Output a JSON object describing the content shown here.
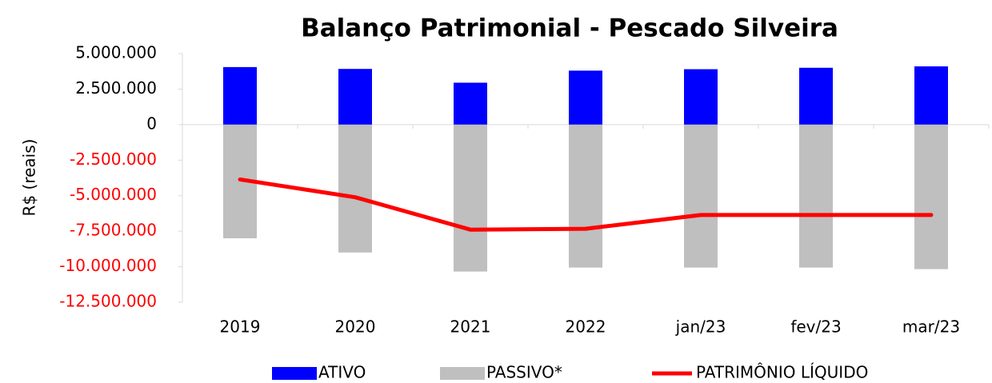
{
  "chart_data": {
    "type": "bar",
    "title": "Balanço Patrimonial - Pescado Silveira",
    "y_label": "R$ (reais)",
    "categories": [
      "2019",
      "2020",
      "2021",
      "2022",
      "jan/23",
      "fev/23",
      "mar/23"
    ],
    "series": [
      {
        "name": "ATIVO",
        "type": "bar",
        "color": "#0000ff",
        "values": [
          4050000,
          3920000,
          2950000,
          3800000,
          3900000,
          4000000,
          4100000
        ]
      },
      {
        "name": "PASSIVO*",
        "type": "bar",
        "color": "#bfbfbf",
        "values": [
          -8000000,
          -9000000,
          -10340000,
          -10060000,
          -10060000,
          -10060000,
          -10170000
        ]
      },
      {
        "name": "PATRIMÔNIO LÍQUIDO",
        "type": "line",
        "color": "#ff0000",
        "values": [
          -3860000,
          -5110000,
          -7390000,
          -7330000,
          -6360000,
          -6360000,
          -6360000
        ]
      }
    ],
    "ylim": [
      -12500000,
      5000000
    ],
    "yticks": [
      {
        "value": 5000000,
        "label": "5.000.000"
      },
      {
        "value": 2500000,
        "label": "2.500.000"
      },
      0,
      {
        "value": -2500000,
        "label": "-2.500.000"
      },
      {
        "value": -5000000,
        "label": "-5.000.000"
      },
      {
        "value": -7500000,
        "label": "-7.500.000"
      },
      {
        "value": -10000000,
        "label": "-10.000.000"
      },
      {
        "value": -12500000,
        "label": "-12.500.000"
      }
    ],
    "negative_label_color": "#ff0000",
    "legend": "bottom"
  }
}
